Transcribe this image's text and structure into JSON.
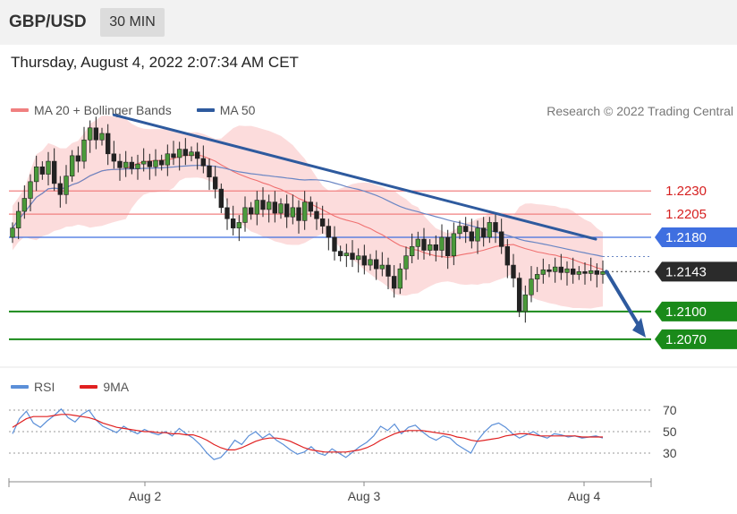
{
  "header": {
    "symbol": "GBP/USD",
    "timeframe": "30 MIN"
  },
  "datetime": "Thursday, August 4, 2022 2:07:34 AM CET",
  "legend": {
    "items": [
      {
        "label": "MA 20 + Bollinger Bands",
        "color": "#f08080"
      },
      {
        "label": "MA 50",
        "color": "#2e5a9e"
      }
    ],
    "copyright": "Research © 2022 Trading Central"
  },
  "rsi_legend": {
    "items": [
      {
        "label": "RSI",
        "color": "#5b8fd8"
      },
      {
        "label": "9MA",
        "color": "#e02020"
      }
    ]
  },
  "colors": {
    "resistance": "#f08080",
    "pivot": "#3f6fe0",
    "support": "#1a8a1a",
    "current": "#2b2b2b",
    "trendline": "#2e5a9e",
    "bollinger_fill": "#fbd6d6",
    "ma20": "#f07070",
    "ma50": "#6a86c4",
    "rsi": "#5b8fd8",
    "rsi_ma": "#e02020"
  },
  "chart_data": {
    "type": "candlestick",
    "x_axis": {
      "ticks": [
        "Aug 2",
        "Aug 3",
        "Aug 4"
      ]
    },
    "y_range": [
      1.204,
      1.232
    ],
    "levels": [
      {
        "value": 1.223,
        "label": "1.2230",
        "kind": "resistance"
      },
      {
        "value": 1.2205,
        "label": "1.2205",
        "kind": "resistance"
      },
      {
        "value": 1.218,
        "label": "1.2180",
        "kind": "pivot"
      },
      {
        "value": 1.2143,
        "label": "1.2143",
        "kind": "current"
      },
      {
        "value": 1.21,
        "label": "1.2100",
        "kind": "support"
      },
      {
        "value": 1.207,
        "label": "1.2070",
        "kind": "support"
      }
    ],
    "close_series": [
      1.219,
      1.2208,
      1.2222,
      1.224,
      1.2256,
      1.2248,
      1.2262,
      1.2238,
      1.2226,
      1.2246,
      1.2268,
      1.2262,
      1.2285,
      1.2298,
      1.2285,
      1.2292,
      1.227,
      1.2262,
      1.2255,
      1.2261,
      1.2254,
      1.2259,
      1.2262,
      1.2256,
      1.2263,
      1.2258,
      1.227,
      1.2266,
      1.2275,
      1.2268,
      1.2272,
      1.2265,
      1.2257,
      1.2245,
      1.2232,
      1.2212,
      1.22,
      1.219,
      1.2196,
      1.2212,
      1.2205,
      1.222,
      1.221,
      1.2218,
      1.2206,
      1.2216,
      1.2202,
      1.2212,
      1.2198,
      1.2218,
      1.2208,
      1.22,
      1.2192,
      1.218,
      1.2165,
      1.216,
      1.2163,
      1.2156,
      1.216,
      1.215,
      1.2156,
      1.2146,
      1.215,
      1.2138,
      1.2125,
      1.2146,
      1.216,
      1.217,
      1.2178,
      1.2166,
      1.2172,
      1.2166,
      1.218,
      1.216,
      1.2184,
      1.2192,
      1.2186,
      1.2176,
      1.219,
      1.218,
      1.2196,
      1.2186,
      1.217,
      1.215,
      1.2136,
      1.21,
      1.2118,
      1.2135,
      1.214,
      1.2145,
      1.2143,
      1.2148,
      1.2142,
      1.2146,
      1.214,
      1.2143,
      1.2141,
      1.2144,
      1.214,
      1.2143
    ],
    "trendline": {
      "start_value": 1.2312,
      "end_value": 1.2178
    },
    "forecast_target": 1.207,
    "rsi": {
      "levels": [
        70,
        50,
        30
      ],
      "series": [
        48,
        62,
        69,
        58,
        54,
        60,
        65,
        71,
        63,
        59,
        66,
        70,
        61,
        55,
        52,
        49,
        55,
        51,
        48,
        52,
        49,
        47,
        50,
        46,
        53,
        48,
        44,
        38,
        30,
        24,
        26,
        33,
        42,
        38,
        46,
        50,
        44,
        48,
        42,
        38,
        33,
        29,
        31,
        36,
        30,
        28,
        34,
        30,
        26,
        31,
        36,
        40,
        46,
        55,
        51,
        57,
        48,
        54,
        56,
        50,
        45,
        42,
        46,
        44,
        38,
        34,
        30,
        42,
        50,
        56,
        58,
        54,
        48,
        44,
        47,
        50,
        46,
        44,
        48,
        47,
        45,
        46,
        44,
        45,
        46,
        44
      ],
      "ma_series": [
        54,
        58,
        62,
        64,
        64,
        64,
        65,
        66,
        66,
        65,
        64,
        63,
        61,
        58,
        56,
        54,
        53,
        52,
        51,
        50,
        50,
        49,
        49,
        48,
        48,
        47,
        47,
        45,
        42,
        38,
        35,
        33,
        33,
        35,
        38,
        41,
        43,
        44,
        44,
        43,
        41,
        38,
        35,
        33,
        32,
        31,
        31,
        31,
        31,
        32,
        33,
        35,
        38,
        42,
        45,
        48,
        50,
        51,
        51,
        51,
        50,
        49,
        48,
        47,
        45,
        44,
        42,
        41,
        42,
        43,
        44,
        46,
        47,
        48,
        48,
        47,
        46,
        46,
        46,
        46,
        46,
        46,
        45,
        45,
        45,
        45
      ]
    }
  }
}
